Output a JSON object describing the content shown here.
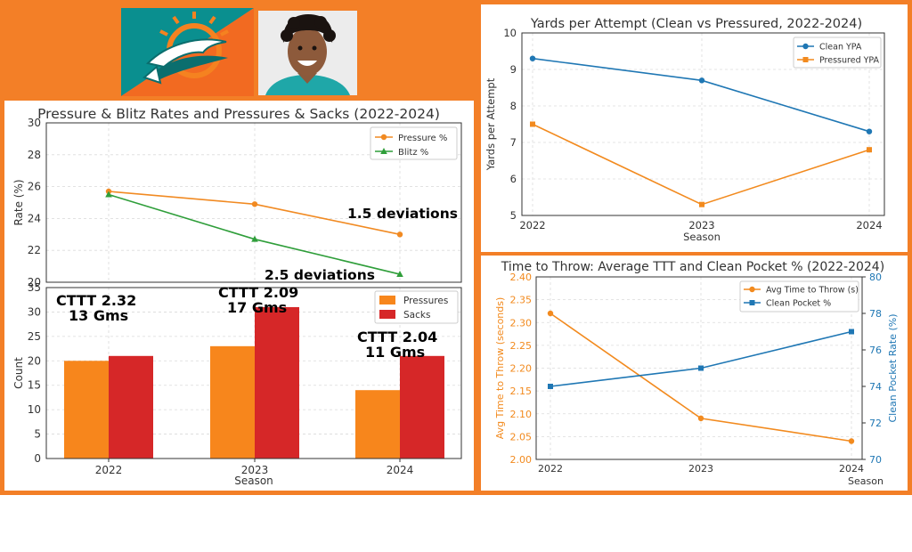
{
  "logo_icon": "miami-dolphins-logo",
  "photo_icon": "player-headshot",
  "colors": {
    "frame": "#f37f27",
    "pressure": "#f18a22",
    "blitz": "#2f9e3a",
    "pressures_bar": "#f7861c",
    "sacks_bar": "#d62728",
    "clean": "#1f77b4",
    "pressured": "#f28a1e",
    "ttt": "#f28a1e",
    "clean_pocket": "#1f77b4"
  },
  "chart_data": [
    {
      "id": "rates",
      "type": "line",
      "title": "Pressure & Blitz Rates and Pressures & Sacks (2022-2024)",
      "xlabel": "",
      "ylabel": "Rate (%)",
      "x": [
        "2022",
        "2023",
        "2024"
      ],
      "ylim": [
        20,
        30
      ],
      "yticks": [
        "20",
        "22",
        "24",
        "26",
        "28",
        "30"
      ],
      "grid": true,
      "legend": "top-right",
      "series": [
        {
          "name": "Pressure %",
          "values": [
            25.7,
            24.9,
            23.0
          ],
          "marker": "circle"
        },
        {
          "name": "Blitz %",
          "values": [
            25.5,
            22.7,
            20.5
          ],
          "marker": "triangle"
        }
      ],
      "annotations": [
        "1.5 deviations",
        "2.5 deviations"
      ]
    },
    {
      "id": "counts",
      "type": "bar",
      "title": "",
      "xlabel": "Season",
      "ylabel": "Count",
      "categories": [
        "2022",
        "2023",
        "2024"
      ],
      "ylim": [
        0,
        35
      ],
      "yticks": [
        "0",
        "5",
        "10",
        "15",
        "20",
        "25",
        "30",
        "35"
      ],
      "grid": true,
      "legend": "top-right",
      "series": [
        {
          "name": "Pressures",
          "values": [
            20,
            23,
            14
          ]
        },
        {
          "name": "Sacks",
          "values": [
            21,
            31,
            21
          ]
        }
      ],
      "annotations": [
        {
          "line1": "CTTT 2.32",
          "line2": "13 Gms"
        },
        {
          "line1": "CTTT 2.09",
          "line2": "17 Gms"
        },
        {
          "line1": "CTTT 2.04",
          "line2": "11 Gms"
        }
      ]
    },
    {
      "id": "ypa",
      "type": "line",
      "title": "Yards per Attempt (Clean vs Pressured, 2022-2024)",
      "xlabel": "Season",
      "ylabel": "Yards per Attempt",
      "x": [
        "2022",
        "2023",
        "2024"
      ],
      "ylim": [
        5,
        10
      ],
      "yticks": [
        "5",
        "6",
        "7",
        "8",
        "9",
        "10"
      ],
      "grid": true,
      "legend": "top-right",
      "series": [
        {
          "name": "Clean YPA",
          "values": [
            9.3,
            8.7,
            7.3
          ],
          "marker": "circle"
        },
        {
          "name": "Pressured YPA",
          "values": [
            7.5,
            5.3,
            6.8
          ],
          "marker": "square"
        }
      ]
    },
    {
      "id": "ttt",
      "type": "line",
      "title": "Time to Throw: Average TTT and Clean Pocket % (2022-2024)",
      "xlabel": "Season",
      "ylabel": "Avg Time to Throw (seconds)",
      "ylabel_right": "Clean Pocket Rate (%)",
      "x": [
        "2022",
        "2023",
        "2024"
      ],
      "ylim": [
        2.0,
        2.4
      ],
      "ylim_right": [
        70,
        80
      ],
      "yticks": [
        "2.00",
        "2.05",
        "2.10",
        "2.15",
        "2.20",
        "2.25",
        "2.30",
        "2.35",
        "2.40"
      ],
      "yticks_right": [
        "70",
        "72",
        "74",
        "76",
        "78",
        "80"
      ],
      "grid": true,
      "legend": "top-right",
      "series": [
        {
          "name": "Avg Time to Throw (s)",
          "values": [
            2.32,
            2.09,
            2.04
          ],
          "marker": "circle",
          "axis": "left"
        },
        {
          "name": "Clean Pocket %",
          "values": [
            74,
            75,
            77
          ],
          "marker": "square",
          "axis": "right"
        }
      ]
    }
  ]
}
